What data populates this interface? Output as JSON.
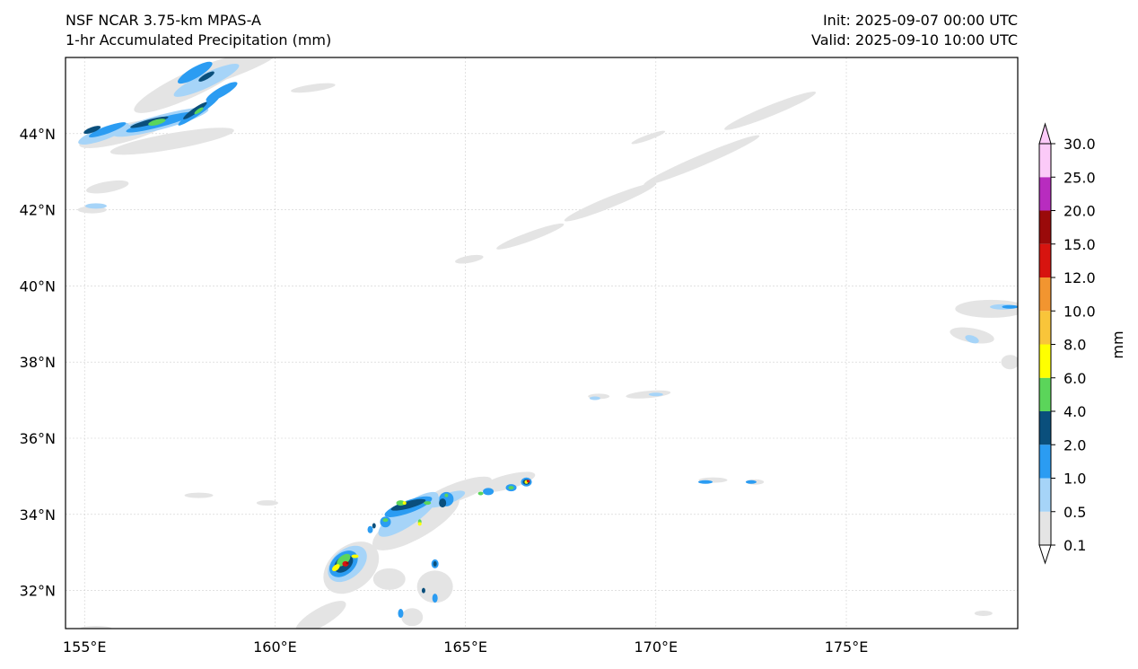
{
  "header": {
    "model_name": "NSF NCAR 3.75-km MPAS-A",
    "field_name": "1-hr Accumulated Precipitation (mm)",
    "init_time": "Init: 2025-09-07 00:00 UTC",
    "valid_time": "Valid: 2025-09-10 10:00 UTC"
  },
  "map": {
    "lon_range": [
      154.5,
      179.5
    ],
    "lat_range": [
      31.0,
      46.0
    ],
    "lon_ticks": [
      {
        "value": 155,
        "label": "155°E"
      },
      {
        "value": 160,
        "label": "160°E"
      },
      {
        "value": 165,
        "label": "165°E"
      },
      {
        "value": 170,
        "label": "170°E"
      },
      {
        "value": 175,
        "label": "175°E"
      }
    ],
    "lat_ticks": [
      {
        "value": 32,
        "label": "32°N"
      },
      {
        "value": 34,
        "label": "34°N"
      },
      {
        "value": 36,
        "label": "36°N"
      },
      {
        "value": 38,
        "label": "38°N"
      },
      {
        "value": 40,
        "label": "40°N"
      },
      {
        "value": 42,
        "label": "42°N"
      },
      {
        "value": 44,
        "label": "44°N"
      }
    ],
    "gridlines": true
  },
  "colorbar": {
    "unit_label": "mm",
    "levels": [
      "0.1",
      "0.5",
      "1.0",
      "2.0",
      "4.0",
      "6.0",
      "8.0",
      "10.0",
      "12.0",
      "15.0",
      "20.0",
      "25.0",
      "30.0"
    ],
    "colors": [
      "#e4e4e4",
      "#a6d4f8",
      "#2b9cf2",
      "#0a4f7c",
      "#5bd55a",
      "#ffff00",
      "#f9c53a",
      "#f29530",
      "#d7140f",
      "#9a0a0a",
      "#b82cbf",
      "#fbcaf8"
    ],
    "extend": "both"
  },
  "precip_features": [
    {
      "region": "northwest band",
      "lon": 156.5,
      "lat": 44.3,
      "max_level": "6.0"
    },
    {
      "region": "northwest band",
      "lon": 157.8,
      "lat": 44.8,
      "max_level": "4.0"
    },
    {
      "region": "southwest cluster",
      "lon": 161.8,
      "lat": 32.7,
      "max_level": "15.0"
    },
    {
      "region": "southwest cluster",
      "lon": 163.5,
      "lat": 34.2,
      "max_level": "8.0"
    },
    {
      "region": "southwest cluster",
      "lon": 166.6,
      "lat": 34.85,
      "max_level": "12.0"
    },
    {
      "region": "east cells",
      "lon": 171.3,
      "lat": 34.85,
      "max_level": "2.0"
    },
    {
      "region": "east cells",
      "lon": 172.5,
      "lat": 34.85,
      "max_level": "2.0"
    },
    {
      "region": "east edge",
      "lon": 179.2,
      "lat": 39.4,
      "max_level": "2.0"
    }
  ]
}
